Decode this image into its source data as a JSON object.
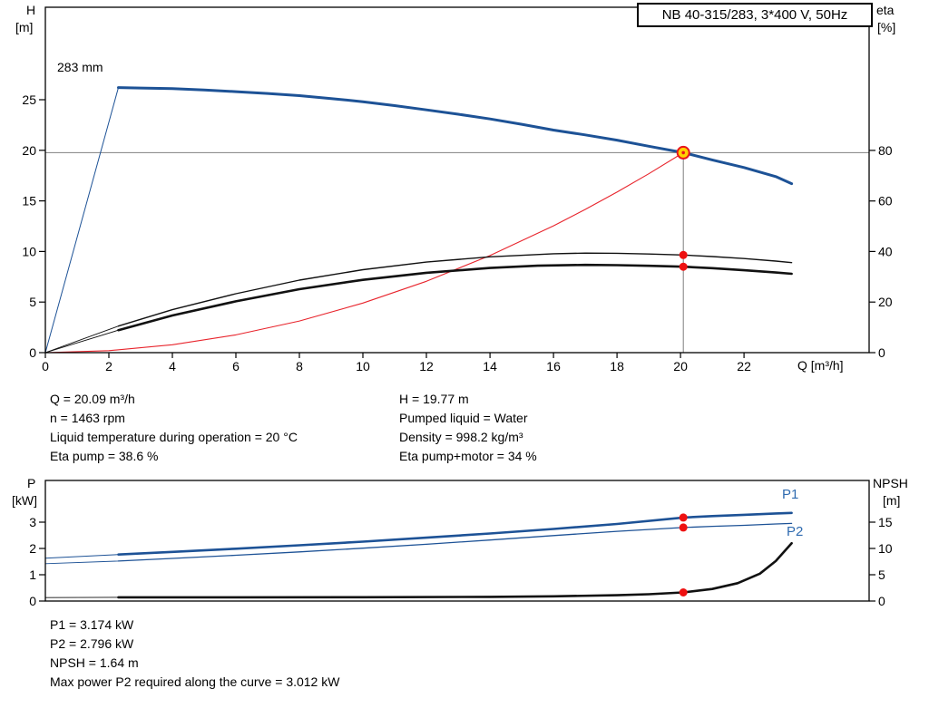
{
  "title_box": "NB 40-315/283, 3*400 V, 50Hz",
  "colors": {
    "curve_blue": "#1d5296",
    "curve_black": "#111111",
    "curve_red": "#e8242c",
    "dot": "#ee1111",
    "duty_fill": "#ffd200",
    "duty_ring": "#e8141c",
    "crosshair": "#7f7f7f",
    "label_blue": "#2f6bb0"
  },
  "axes": {
    "top": {
      "y_left": "H",
      "y_left_unit": "[m]",
      "y_right": "eta",
      "y_right_unit": "[%]",
      "x": "Q [m³/h]"
    },
    "bottom": {
      "y_left": "P",
      "y_left_unit": "[kW]",
      "y_right": "NPSH",
      "y_right_unit": "[m]"
    }
  },
  "curve_labels": {
    "impeller": "283 mm",
    "p1": "P1",
    "p2": "P2"
  },
  "info_top": {
    "left": [
      "Q = 20.09 m³/h",
      "n = 1463 rpm",
      "Liquid temperature during operation = 20 °C",
      "Eta pump = 38.6 %"
    ],
    "right": [
      "H = 19.77 m",
      "Pumped liquid = Water",
      "Density = 998.2 kg/m³",
      "Eta pump+motor = 34 %"
    ]
  },
  "info_bottom": [
    "P1 = 3.174 kW",
    "P2 = 2.796 kW",
    "NPSH = 1.64 m",
    "Max power P2 required along the curve = 3.012 kW"
  ],
  "chart_data": [
    {
      "name": "hq-chart",
      "type": "line",
      "title": "NB 40-315/283, 3*400 V, 50Hz",
      "xlabel": "Q [m³/h]",
      "ylabel_left": "H [m]",
      "ylabel_right": "eta [%]",
      "xlim": [
        0,
        25.94
      ],
      "ylim_left": [
        0,
        34.14
      ],
      "ylim_right": [
        0,
        136.6
      ],
      "x_ticks": [
        0,
        2,
        4,
        6,
        8,
        10,
        12,
        14,
        16,
        18,
        20,
        22
      ],
      "y_ticks_left": [
        0,
        5,
        10,
        15,
        20,
        25
      ],
      "y_ticks_right": [
        0,
        20,
        40,
        60,
        80
      ],
      "grid": false,
      "legend": "none",
      "crosshair": {
        "x": 20.09,
        "y": 19.77
      },
      "series": [
        {
          "name": "min-flow-line",
          "axis": "left",
          "color": "#1d5296",
          "width": 1,
          "x": [
            0,
            2.3
          ],
          "y": [
            0,
            26.2
          ]
        },
        {
          "name": "system-curve",
          "axis": "left",
          "color": "#e8242c",
          "width": 1.1,
          "x": [
            0,
            2,
            4,
            6,
            8,
            10,
            12,
            14,
            16,
            17,
            18,
            19,
            20.09
          ],
          "y": [
            0,
            0.2,
            0.78,
            1.76,
            3.13,
            4.9,
            7.05,
            9.6,
            12.54,
            14.16,
            15.87,
            17.68,
            19.77
          ]
        },
        {
          "name": "eta-pump-ext",
          "axis": "right",
          "color": "#111111",
          "width": 0.9,
          "x": [
            0,
            2.3
          ],
          "y": [
            0,
            10.5
          ]
        },
        {
          "name": "eta-pump-curve",
          "axis": "right",
          "color": "#111111",
          "width": 1.4,
          "x": [
            2.3,
            4,
            6,
            8,
            10,
            12,
            14,
            16,
            17,
            18,
            19,
            20.09,
            21,
            22,
            23,
            23.5
          ],
          "y": [
            10.5,
            17.0,
            23.3,
            28.7,
            32.8,
            35.8,
            37.9,
            39.1,
            39.35,
            39.3,
            39.0,
            38.6,
            38.0,
            37.2,
            36.2,
            35.6
          ]
        },
        {
          "name": "eta-pump-motor-ext",
          "axis": "right",
          "color": "#111111",
          "width": 0.9,
          "x": [
            0,
            2.3
          ],
          "y": [
            0,
            8.9
          ]
        },
        {
          "name": "eta-pump-motor-curve",
          "axis": "right",
          "color": "#111111",
          "width": 2.6,
          "x": [
            2.3,
            4,
            6,
            8,
            10,
            12,
            14,
            15.5,
            17,
            18,
            19,
            20.09,
            21,
            22,
            23,
            23.5
          ],
          "y": [
            8.9,
            14.7,
            20.3,
            25.1,
            28.8,
            31.6,
            33.5,
            34.4,
            34.7,
            34.6,
            34.35,
            34.0,
            33.4,
            32.6,
            31.7,
            31.2
          ]
        },
        {
          "name": "head-curve",
          "axis": "left",
          "color": "#1d5296",
          "width": 3,
          "x": [
            2.3,
            3,
            4,
            5,
            6,
            7,
            8,
            9,
            10,
            11,
            12,
            13,
            14,
            15,
            16,
            17,
            18,
            19,
            20.09,
            21,
            22,
            23,
            23.5
          ],
          "y": [
            26.2,
            26.16,
            26.1,
            25.97,
            25.8,
            25.62,
            25.4,
            25.12,
            24.8,
            24.42,
            24.0,
            23.57,
            23.1,
            22.57,
            22.0,
            21.52,
            21.0,
            20.4,
            19.77,
            19.05,
            18.3,
            17.4,
            16.7
          ]
        }
      ],
      "markers": [
        {
          "type": "duty",
          "axis": "left",
          "x": 20.09,
          "y": 19.77
        },
        {
          "type": "dot",
          "axis": "right",
          "x": 20.09,
          "y": 38.6
        },
        {
          "type": "dot",
          "axis": "right",
          "x": 20.09,
          "y": 34.0
        }
      ]
    },
    {
      "name": "power-npsh-chart",
      "type": "line",
      "title": "",
      "xlabel": "",
      "ylabel_left": "P [kW]",
      "ylabel_right": "NPSH [m]",
      "xlim": [
        0,
        25.94
      ],
      "ylim_left": [
        0,
        4.586
      ],
      "ylim_right": [
        0,
        22.93
      ],
      "x_ticks": [],
      "y_ticks_left": [
        0,
        1,
        2,
        3
      ],
      "y_ticks_right": [
        0,
        5,
        10,
        15
      ],
      "grid": false,
      "legend": "inline-labels",
      "series": [
        {
          "name": "npsh-ext",
          "axis": "right",
          "color": "#111111",
          "width": 0.9,
          "x": [
            0,
            2.3
          ],
          "y": [
            0.65,
            0.7
          ]
        },
        {
          "name": "npsh-curve",
          "axis": "right",
          "color": "#111111",
          "width": 2.6,
          "x": [
            2.3,
            6,
            10,
            14,
            16,
            18,
            19,
            20.09,
            21,
            21.8,
            22.5,
            23,
            23.5
          ],
          "y": [
            0.7,
            0.7,
            0.73,
            0.8,
            0.9,
            1.1,
            1.3,
            1.64,
            2.3,
            3.4,
            5.2,
            7.6,
            11.0
          ]
        },
        {
          "name": "p2-ext",
          "axis": "left",
          "color": "#1d5296",
          "width": 0.9,
          "x": [
            0,
            2.3
          ],
          "y": [
            1.42,
            1.52
          ]
        },
        {
          "name": "p2-curve",
          "axis": "left",
          "color": "#1d5296",
          "width": 1.3,
          "x": [
            2.3,
            4,
            6,
            8,
            10,
            12,
            14,
            16,
            18,
            20.09,
            21,
            22,
            23,
            23.5
          ],
          "y": [
            1.52,
            1.62,
            1.74,
            1.87,
            2.01,
            2.16,
            2.32,
            2.49,
            2.65,
            2.796,
            2.84,
            2.88,
            2.93,
            2.95
          ]
        },
        {
          "name": "p1-ext",
          "axis": "left",
          "color": "#1d5296",
          "width": 1,
          "x": [
            0,
            2.3
          ],
          "y": [
            1.63,
            1.77
          ]
        },
        {
          "name": "p1-curve",
          "axis": "left",
          "color": "#1d5296",
          "width": 2.6,
          "x": [
            2.3,
            4,
            6,
            8,
            10,
            12,
            14,
            16,
            18,
            20.09,
            21,
            22,
            23,
            23.5
          ],
          "y": [
            1.77,
            1.87,
            1.99,
            2.12,
            2.26,
            2.41,
            2.57,
            2.74,
            2.93,
            3.174,
            3.23,
            3.28,
            3.33,
            3.35
          ]
        }
      ],
      "markers": [
        {
          "type": "dot",
          "axis": "left",
          "x": 20.09,
          "y": 3.174
        },
        {
          "type": "dot",
          "axis": "left",
          "x": 20.09,
          "y": 2.796
        },
        {
          "type": "dot",
          "axis": "right",
          "x": 20.09,
          "y": 1.64
        }
      ]
    }
  ]
}
